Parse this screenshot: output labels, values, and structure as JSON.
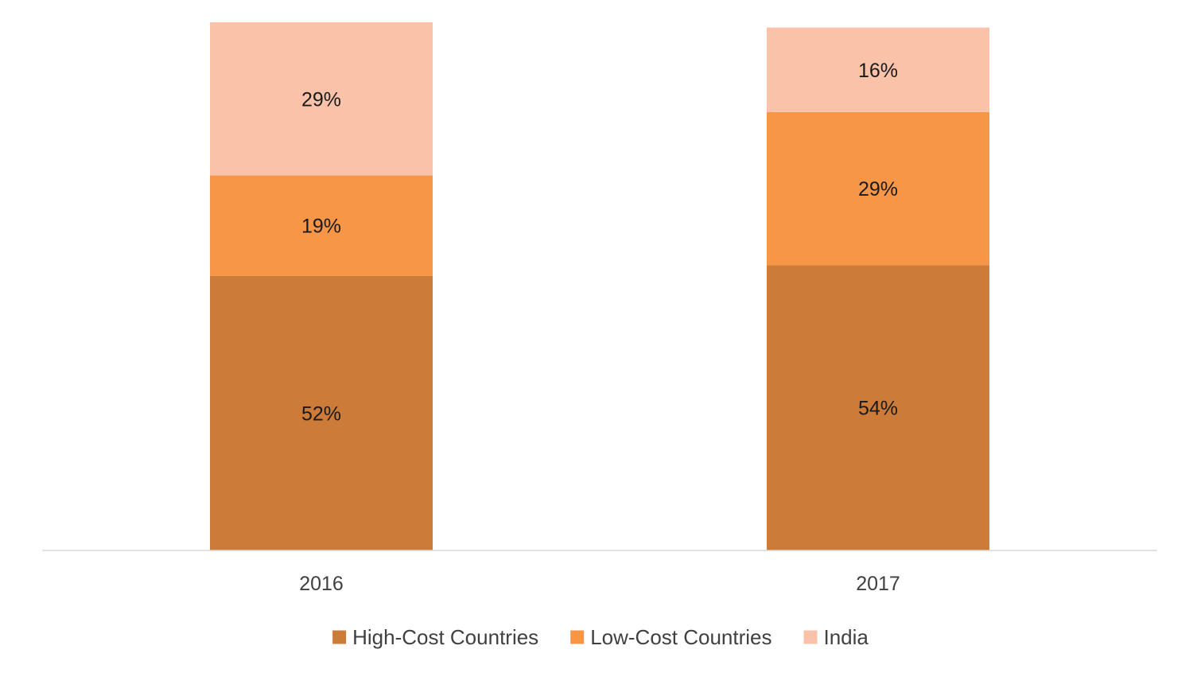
{
  "chart_data": {
    "type": "bar",
    "stacked": true,
    "categories": [
      "2016",
      "2017"
    ],
    "series": [
      {
        "name": "High-Cost Countries",
        "color": "#CD7B38",
        "values": [
          52,
          54
        ],
        "labels": [
          "52%",
          "54%"
        ]
      },
      {
        "name": "Low-Cost Countries",
        "color": "#F79646",
        "values": [
          19,
          29
        ],
        "labels": [
          "19%",
          "29%"
        ]
      },
      {
        "name": "India",
        "color": "#FAC3A9",
        "values": [
          29,
          16
        ],
        "labels": [
          "29%",
          "16%"
        ]
      }
    ],
    "title": "",
    "xlabel": "",
    "ylabel": "",
    "ylim": [
      0,
      100
    ],
    "grid": false,
    "legend": "bottom-center",
    "axis_color": "#D9D9D9"
  }
}
